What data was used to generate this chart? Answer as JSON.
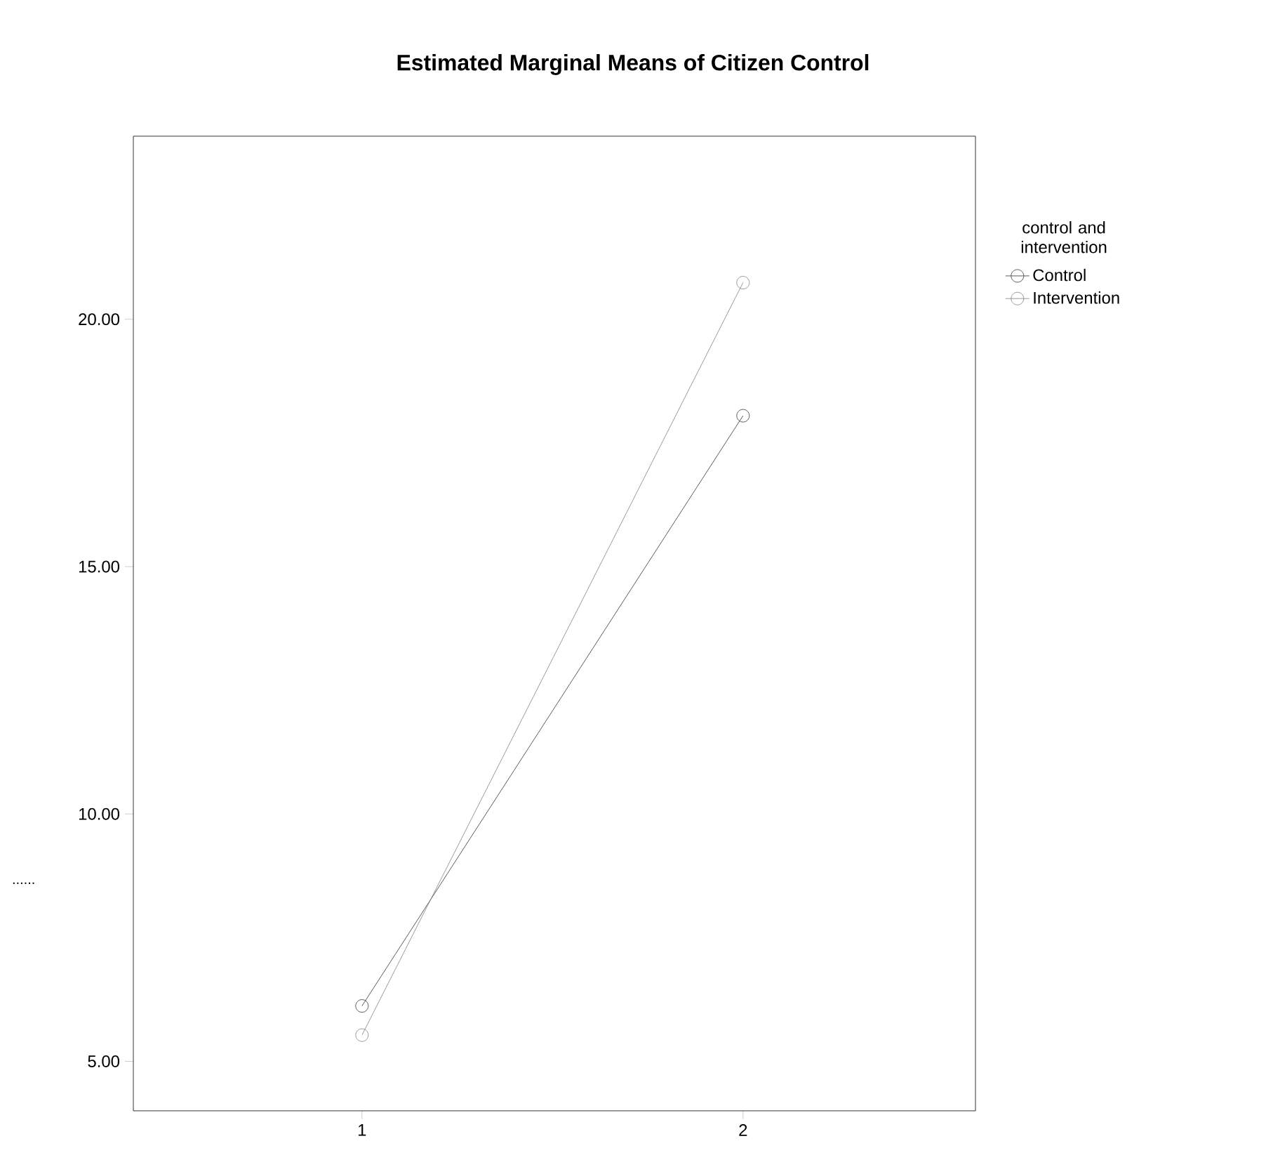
{
  "chart_data": {
    "type": "line",
    "title": "Estimated Marginal Means of Citizen Control",
    "ylabel": "......",
    "legend_title": "control and intervention",
    "categories": [
      "1",
      "2"
    ],
    "series": [
      {
        "name": "Control",
        "color": "#333333",
        "values": [
          6.12,
          18.05
        ]
      },
      {
        "name": "Intervention",
        "color": "#808080",
        "values": [
          5.53,
          20.74
        ]
      }
    ],
    "ylim": [
      4.0,
      23.7
    ],
    "yticks": [
      {
        "value": 5,
        "label": "5.00"
      },
      {
        "value": 10,
        "label": "10.00"
      },
      {
        "value": 15,
        "label": "15.00"
      },
      {
        "value": 20,
        "label": "20.00"
      }
    ],
    "marker": "circle",
    "line_style": "solid",
    "grid": false,
    "legend": "top right"
  }
}
